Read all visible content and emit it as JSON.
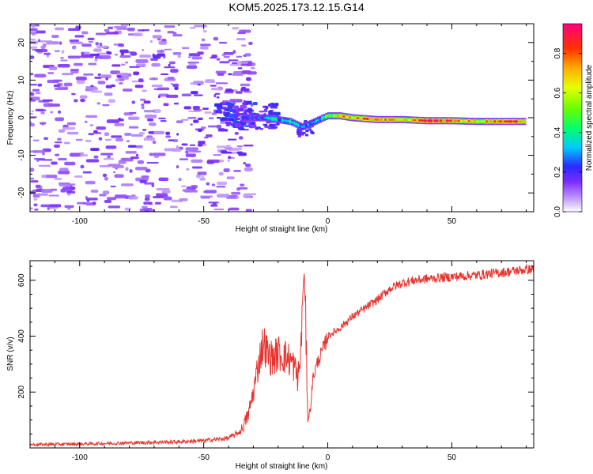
{
  "title": "KOM5.2025.173.12.15.G14",
  "chart_data": [
    {
      "type": "heatmap",
      "xlabel": "Height of straight line (km)",
      "ylabel": "Frequency (Hz)",
      "xlim": [
        -120,
        83
      ],
      "ylim": [
        -25,
        25
      ],
      "xticks": [
        -100,
        -50,
        0,
        50
      ],
      "yticks": [
        -20,
        -10,
        0,
        10,
        20
      ],
      "colorbar": {
        "label": "Normalized spectral amplitude",
        "range": [
          0,
          0.95
        ],
        "ticks": [
          0.0,
          0.2,
          0.4,
          0.6,
          0.8
        ],
        "tick_labels": [
          "0.0",
          "0.2",
          "0.4",
          "0.6",
          "0.8"
        ]
      },
      "ridge": [
        {
          "x": -35,
          "y": 0,
          "v": 0.15
        },
        {
          "x": -25,
          "y": 0,
          "v": 0.3
        },
        {
          "x": -20,
          "y": -0.5,
          "v": 0.35
        },
        {
          "x": -15,
          "y": -1,
          "v": 0.4
        },
        {
          "x": -10,
          "y": -2.5,
          "v": 0.2
        },
        {
          "x": -5,
          "y": -1,
          "v": 0.3
        },
        {
          "x": 0,
          "y": 0.5,
          "v": 0.55
        },
        {
          "x": 5,
          "y": 0.5,
          "v": 0.7
        },
        {
          "x": 10,
          "y": 0,
          "v": 0.75
        },
        {
          "x": 20,
          "y": -0.5,
          "v": 0.8
        },
        {
          "x": 30,
          "y": -0.5,
          "v": 0.6
        },
        {
          "x": 40,
          "y": -0.8,
          "v": 0.9
        },
        {
          "x": 50,
          "y": -0.8,
          "v": 0.8
        },
        {
          "x": 60,
          "y": -1,
          "v": 0.65
        },
        {
          "x": 70,
          "y": -1,
          "v": 0.85
        },
        {
          "x": 80,
          "y": -1,
          "v": 0.8
        }
      ]
    },
    {
      "type": "line",
      "xlabel": "Height of straight line (km)",
      "ylabel": "SNR (v/v)",
      "xlim": [
        -120,
        83
      ],
      "ylim": [
        0,
        670
      ],
      "xticks": [
        -100,
        -50,
        0,
        50
      ],
      "yticks": [
        200,
        400,
        600
      ],
      "series": [
        {
          "color": "#e8322c",
          "points": [
            [
              -120,
              12
            ],
            [
              -100,
              14
            ],
            [
              -80,
              18
            ],
            [
              -60,
              22
            ],
            [
              -50,
              26
            ],
            [
              -40,
              35
            ],
            [
              -35,
              60
            ],
            [
              -32,
              120
            ],
            [
              -30,
              200
            ],
            [
              -28,
              300
            ],
            [
              -26,
              380
            ],
            [
              -24,
              330
            ],
            [
              -22,
              320
            ],
            [
              -20,
              340
            ],
            [
              -18,
              330
            ],
            [
              -16,
              320
            ],
            [
              -14,
              300
            ],
            [
              -12,
              250
            ],
            [
              -11,
              320
            ],
            [
              -10,
              560
            ],
            [
              -9.5,
              630
            ],
            [
              -9,
              480
            ],
            [
              -8,
              100
            ],
            [
              -7,
              140
            ],
            [
              -6,
              250
            ],
            [
              -4,
              310
            ],
            [
              -2,
              350
            ],
            [
              0,
              400
            ],
            [
              5,
              430
            ],
            [
              10,
              470
            ],
            [
              15,
              500
            ],
            [
              20,
              530
            ],
            [
              25,
              570
            ],
            [
              30,
              590
            ],
            [
              35,
              600
            ],
            [
              40,
              605
            ],
            [
              50,
              612
            ],
            [
              60,
              618
            ],
            [
              70,
              628
            ],
            [
              80,
              638
            ],
            [
              83,
              640
            ]
          ]
        }
      ]
    }
  ]
}
